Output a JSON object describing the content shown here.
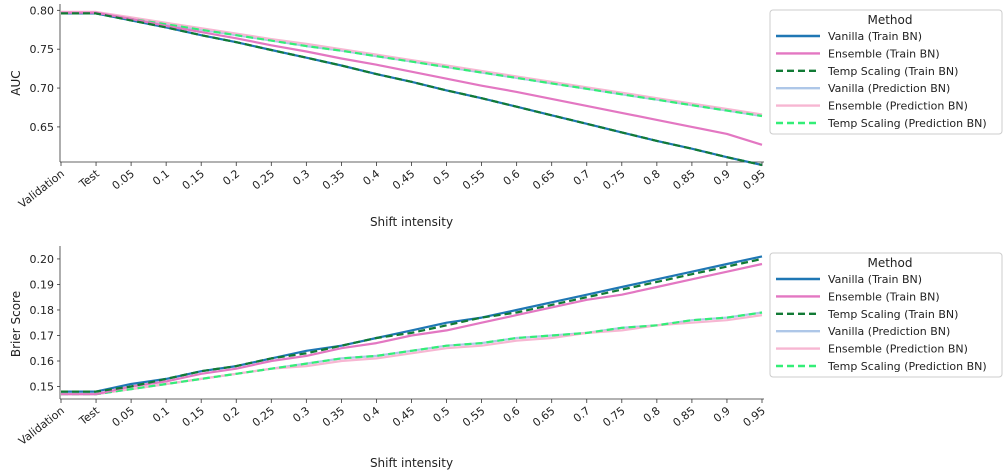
{
  "chart_data": [
    {
      "type": "line",
      "xlabel": "Shift intensity",
      "ylabel": "AUC",
      "categories": [
        "Validation",
        "Test",
        "0.05",
        "0.1",
        "0.15",
        "0.2",
        "0.25",
        "0.3",
        "0.35",
        "0.4",
        "0.45",
        "0.5",
        "0.55",
        "0.6",
        "0.65",
        "0.7",
        "0.75",
        "0.8",
        "0.85",
        "0.9",
        "0.95"
      ],
      "ylim": [
        0.61,
        0.803
      ],
      "yticks": [
        "0.80",
        "0.75",
        "0.70",
        "0.65"
      ],
      "grid": false,
      "legend_placement": "right",
      "legend_title": "Method",
      "series": [
        {
          "name": "Vanilla (Train BN)",
          "values": [
            0.796,
            0.796,
            0.787,
            0.778,
            0.768,
            0.759,
            0.749,
            0.739,
            0.729,
            0.718,
            0.708,
            0.697,
            0.687,
            0.676,
            0.665,
            0.654,
            0.643,
            0.632,
            0.622,
            0.611,
            0.601
          ]
        },
        {
          "name": "Ensemble (Train BN)",
          "values": [
            0.797,
            0.797,
            0.789,
            0.78,
            0.772,
            0.764,
            0.755,
            0.747,
            0.738,
            0.73,
            0.721,
            0.712,
            0.703,
            0.695,
            0.686,
            0.677,
            0.668,
            0.659,
            0.65,
            0.641,
            0.627
          ]
        },
        {
          "name": "Temp Scaling (Train BN)",
          "values": [
            0.796,
            0.796,
            0.787,
            0.778,
            0.768,
            0.759,
            0.749,
            0.739,
            0.729,
            0.718,
            0.708,
            0.697,
            0.687,
            0.676,
            0.665,
            0.654,
            0.643,
            0.632,
            0.622,
            0.611,
            0.601
          ]
        },
        {
          "name": "Vanilla (Prediction BN)",
          "values": [
            0.796,
            0.796,
            0.789,
            0.782,
            0.775,
            0.768,
            0.761,
            0.754,
            0.748,
            0.741,
            0.734,
            0.727,
            0.72,
            0.713,
            0.706,
            0.699,
            0.692,
            0.685,
            0.678,
            0.671,
            0.664
          ]
        },
        {
          "name": "Ensemble (Prediction BN)",
          "values": [
            0.798,
            0.798,
            0.791,
            0.784,
            0.777,
            0.77,
            0.763,
            0.757,
            0.75,
            0.743,
            0.736,
            0.729,
            0.722,
            0.715,
            0.708,
            0.701,
            0.694,
            0.687,
            0.68,
            0.673,
            0.666
          ]
        },
        {
          "name": "Temp Scaling (Prediction BN)",
          "values": [
            0.796,
            0.796,
            0.789,
            0.782,
            0.775,
            0.768,
            0.761,
            0.754,
            0.748,
            0.741,
            0.734,
            0.727,
            0.72,
            0.713,
            0.706,
            0.699,
            0.692,
            0.685,
            0.678,
            0.671,
            0.664
          ]
        }
      ]
    },
    {
      "type": "line",
      "xlabel": "Shift intensity",
      "ylabel": "Brier Score",
      "categories": [
        "Validation",
        "Test",
        "0.05",
        "0.1",
        "0.15",
        "0.2",
        "0.25",
        "0.3",
        "0.35",
        "0.4",
        "0.45",
        "0.5",
        "0.55",
        "0.6",
        "0.65",
        "0.7",
        "0.75",
        "0.8",
        "0.85",
        "0.9",
        "0.95"
      ],
      "ylim": [
        0.1455,
        0.2035
      ],
      "yticks": [
        "0.20",
        "0.19",
        "0.18",
        "0.17",
        "0.16",
        "0.15"
      ],
      "grid": false,
      "legend_placement": "right",
      "legend_title": "Method",
      "series": [
        {
          "name": "Vanilla (Train BN)",
          "values": [
            0.148,
            0.148,
            0.151,
            0.153,
            0.156,
            0.158,
            0.161,
            0.164,
            0.166,
            0.169,
            0.172,
            0.175,
            0.177,
            0.18,
            0.183,
            0.186,
            0.189,
            0.192,
            0.195,
            0.198,
            0.201
          ]
        },
        {
          "name": "Ensemble (Train BN)",
          "values": [
            0.147,
            0.147,
            0.15,
            0.152,
            0.155,
            0.157,
            0.16,
            0.162,
            0.165,
            0.167,
            0.17,
            0.172,
            0.175,
            0.178,
            0.181,
            0.184,
            0.186,
            0.189,
            0.192,
            0.195,
            0.198
          ]
        },
        {
          "name": "Temp Scaling (Train BN)",
          "values": [
            0.148,
            0.148,
            0.15,
            0.153,
            0.156,
            0.158,
            0.161,
            0.163,
            0.166,
            0.169,
            0.171,
            0.174,
            0.177,
            0.179,
            0.182,
            0.185,
            0.188,
            0.191,
            0.194,
            0.197,
            0.2
          ]
        },
        {
          "name": "Vanilla (Prediction BN)",
          "values": [
            0.147,
            0.147,
            0.149,
            0.151,
            0.153,
            0.155,
            0.157,
            0.159,
            0.161,
            0.162,
            0.164,
            0.166,
            0.167,
            0.169,
            0.17,
            0.171,
            0.173,
            0.174,
            0.176,
            0.177,
            0.179
          ]
        },
        {
          "name": "Ensemble (Prediction BN)",
          "values": [
            0.147,
            0.147,
            0.149,
            0.151,
            0.153,
            0.155,
            0.157,
            0.158,
            0.16,
            0.161,
            0.163,
            0.165,
            0.166,
            0.168,
            0.169,
            0.171,
            0.172,
            0.174,
            0.175,
            0.176,
            0.178
          ]
        },
        {
          "name": "Temp Scaling (Prediction BN)",
          "values": [
            0.147,
            0.147,
            0.149,
            0.151,
            0.153,
            0.155,
            0.157,
            0.159,
            0.161,
            0.162,
            0.164,
            0.166,
            0.167,
            0.169,
            0.17,
            0.171,
            0.173,
            0.174,
            0.176,
            0.177,
            0.179
          ]
        }
      ]
    }
  ],
  "series_styles": [
    {
      "color": "#1f77b4",
      "dash": "solid"
    },
    {
      "color": "#e377c2",
      "dash": "solid"
    },
    {
      "color": "#117a35",
      "dash": "dashed"
    },
    {
      "color": "#aec7e8",
      "dash": "solid"
    },
    {
      "color": "#f7b6d2",
      "dash": "solid"
    },
    {
      "color": "#33ee77",
      "dash": "dashed"
    }
  ]
}
